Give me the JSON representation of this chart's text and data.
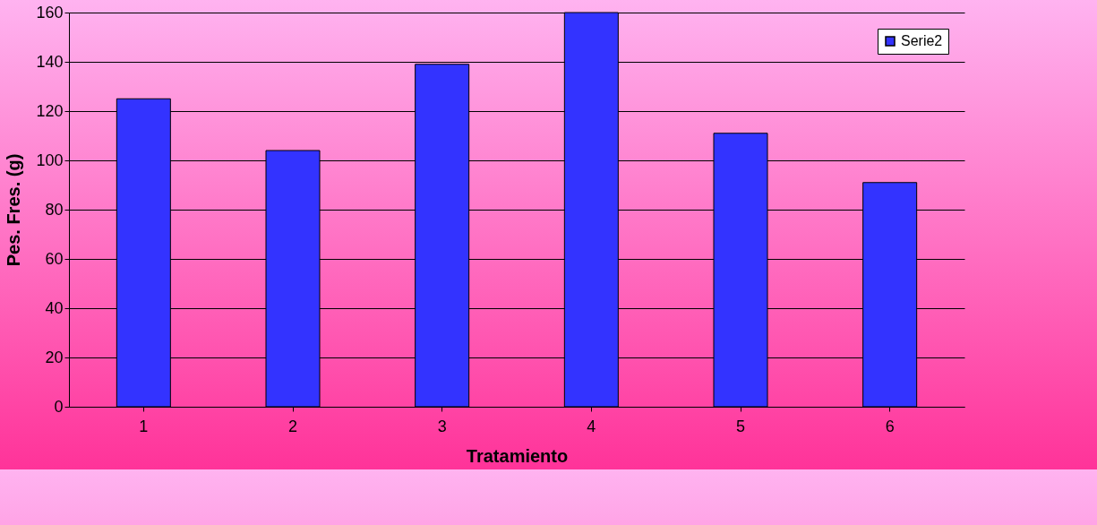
{
  "chart_data": {
    "type": "bar",
    "xlabel": "Tratamiento",
    "ylabel": "Pes. Fres. (g)",
    "categories": [
      "1",
      "2",
      "3",
      "4",
      "5",
      "6"
    ],
    "series": [
      {
        "name": "Serie2",
        "color": "#3333ff",
        "values": [
          125,
          104,
          139,
          160,
          111,
          91
        ]
      }
    ],
    "ylim": [
      0,
      160
    ],
    "yticks": [
      0,
      20,
      40,
      60,
      80,
      100,
      120,
      140,
      160
    ],
    "grid": "y",
    "legend": "top right"
  }
}
